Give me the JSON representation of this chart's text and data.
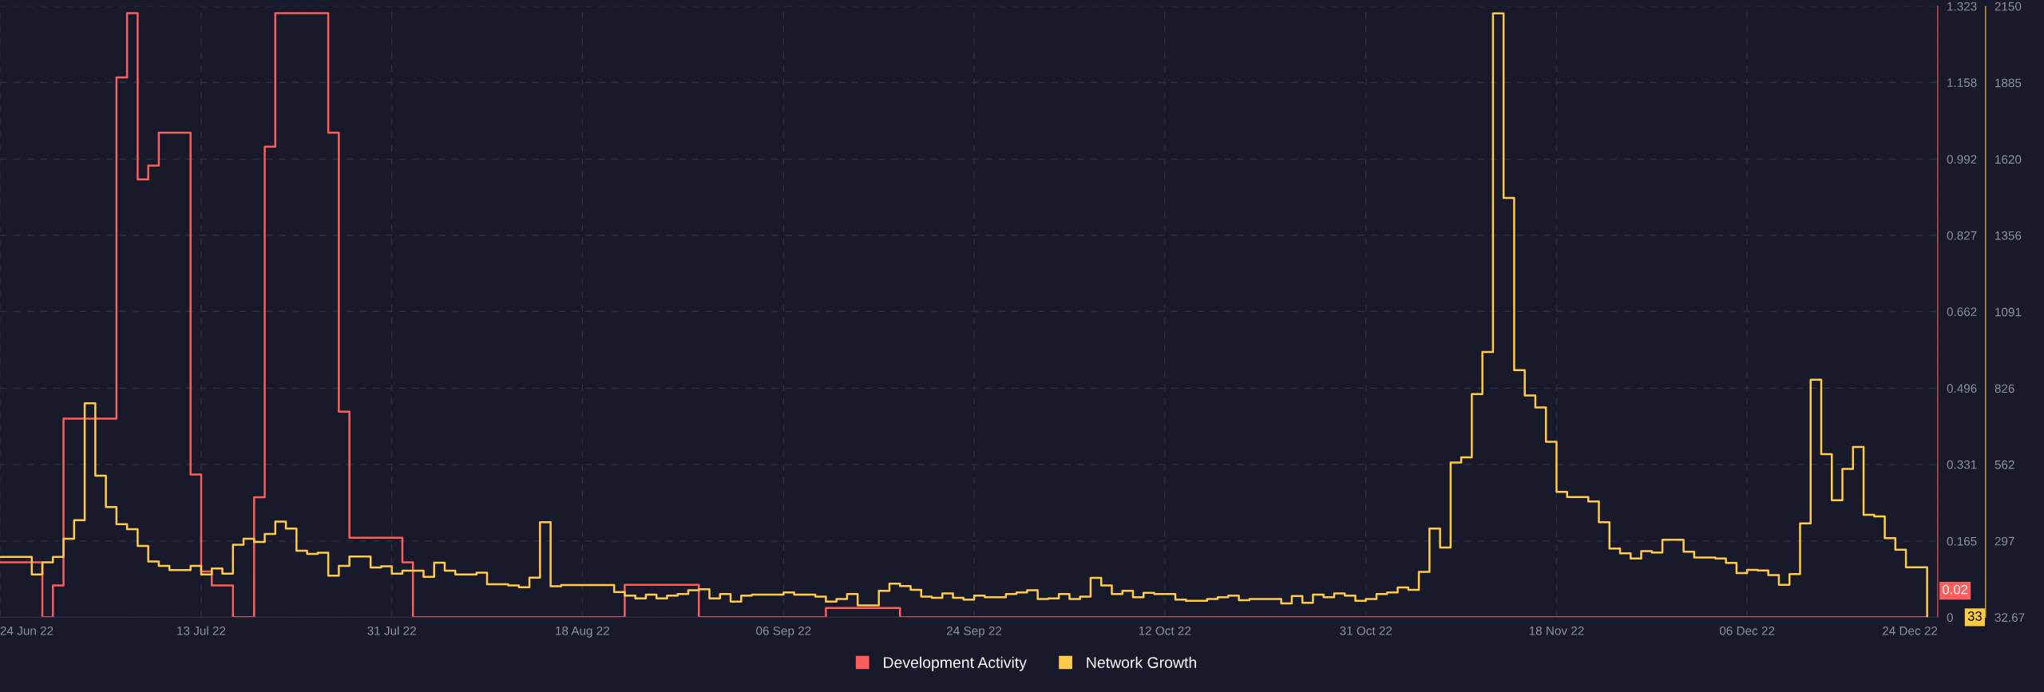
{
  "chart_data": {
    "type": "step",
    "annotations": [
      "0.02",
      "33"
    ],
    "series": [
      {
        "name": "Development Activity",
        "color": "#ff5c5c",
        "axis": "y",
        "x": [
          "2022-06-24",
          "2022-06-28",
          "2022-06-29",
          "2022-06-30",
          "2022-07-05",
          "2022-07-06",
          "2022-07-07",
          "2022-07-08",
          "2022-07-09",
          "2022-07-12",
          "2022-07-13",
          "2022-07-14",
          "2022-07-16",
          "2022-07-18",
          "2022-07-19",
          "2022-07-20",
          "2022-07-25",
          "2022-07-26",
          "2022-07-27",
          "2022-08-01",
          "2022-08-02",
          "2022-08-22",
          "2022-08-29",
          "2022-09-10",
          "2022-09-17",
          "2022-12-23"
        ],
        "values": [
          0.119,
          0,
          0.069,
          0.43,
          1.169,
          1.308,
          0.948,
          0.978,
          1.049,
          0.309,
          0.099,
          0.069,
          0,
          0.26,
          1.019,
          1.308,
          1.049,
          0.445,
          0.172,
          0.119,
          0,
          0.07,
          0,
          0.02,
          0,
          0
        ]
      },
      {
        "name": "Network Growth",
        "color": "#ffcb47",
        "axis": "y2",
        "x": [
          "2022-06-24",
          "2022-06-27",
          "2022-06-28",
          "2022-06-29",
          "2022-06-30",
          "2022-07-01",
          "2022-07-02",
          "2022-07-03",
          "2022-07-04",
          "2022-07-05",
          "2022-07-06",
          "2022-07-07",
          "2022-07-08",
          "2022-07-09",
          "2022-07-10",
          "2022-07-12",
          "2022-07-13",
          "2022-07-14",
          "2022-07-15",
          "2022-07-16",
          "2022-07-17",
          "2022-07-18",
          "2022-07-19",
          "2022-07-20",
          "2022-07-21",
          "2022-07-22",
          "2022-07-23",
          "2022-07-24",
          "2022-07-25",
          "2022-07-26",
          "2022-07-27",
          "2022-07-29",
          "2022-07-30",
          "2022-07-31",
          "2022-08-01",
          "2022-08-03",
          "2022-08-04",
          "2022-08-05",
          "2022-08-06",
          "2022-08-08",
          "2022-08-09",
          "2022-08-11",
          "2022-08-12",
          "2022-08-13",
          "2022-08-14",
          "2022-08-15",
          "2022-08-16",
          "2022-08-21",
          "2022-08-22",
          "2022-08-23",
          "2022-08-24",
          "2022-08-25",
          "2022-08-26",
          "2022-08-27",
          "2022-08-28",
          "2022-08-29",
          "2022-08-30",
          "2022-08-31",
          "2022-09-01",
          "2022-09-02",
          "2022-09-03",
          "2022-09-06",
          "2022-09-07",
          "2022-09-09",
          "2022-09-10",
          "2022-09-11",
          "2022-09-12",
          "2022-09-13",
          "2022-09-15",
          "2022-09-16",
          "2022-09-17",
          "2022-09-18",
          "2022-09-19",
          "2022-09-20",
          "2022-09-21",
          "2022-09-22",
          "2022-09-23",
          "2022-09-24",
          "2022-09-25",
          "2022-09-27",
          "2022-09-28",
          "2022-09-29",
          "2022-09-30",
          "2022-10-01",
          "2022-10-02",
          "2022-10-03",
          "2022-10-04",
          "2022-10-05",
          "2022-10-06",
          "2022-10-07",
          "2022-10-08",
          "2022-10-09",
          "2022-10-10",
          "2022-10-11",
          "2022-10-13",
          "2022-10-14",
          "2022-10-16",
          "2022-10-17",
          "2022-10-18",
          "2022-10-19",
          "2022-10-20",
          "2022-10-23",
          "2022-10-24",
          "2022-10-25",
          "2022-10-26",
          "2022-10-27",
          "2022-10-28",
          "2022-10-29",
          "2022-10-30",
          "2022-10-31",
          "2022-11-01",
          "2022-11-02",
          "2022-11-03",
          "2022-11-04",
          "2022-11-05",
          "2022-11-06",
          "2022-11-07",
          "2022-11-08",
          "2022-11-09",
          "2022-11-10",
          "2022-11-11",
          "2022-11-12",
          "2022-11-13",
          "2022-11-14",
          "2022-11-15",
          "2022-11-16",
          "2022-11-17",
          "2022-11-18",
          "2022-11-19",
          "2022-11-21",
          "2022-11-22",
          "2022-11-23",
          "2022-11-24",
          "2022-11-25",
          "2022-11-26",
          "2022-11-27",
          "2022-11-28",
          "2022-11-30",
          "2022-12-01",
          "2022-12-02",
          "2022-12-03",
          "2022-12-04",
          "2022-12-05",
          "2022-12-06",
          "2022-12-07",
          "2022-12-08",
          "2022-12-09",
          "2022-12-10",
          "2022-12-11",
          "2022-12-12",
          "2022-12-13",
          "2022-12-14",
          "2022-12-15",
          "2022-12-16",
          "2022-12-17",
          "2022-12-18",
          "2022-12-19",
          "2022-12-20",
          "2022-12-21",
          "2022-12-23"
        ],
        "values": [
          242,
          181,
          223,
          242,
          305,
          369,
          774,
          523,
          415,
          355,
          338,
          280,
          226,
          211,
          196,
          211,
          181,
          202,
          184,
          284,
          305,
          294,
          321,
          364,
          340,
          263,
          252,
          256,
          177,
          211,
          243,
          205,
          209,
          184,
          194,
          173,
          222,
          194,
          181,
          187,
          147,
          143,
          137,
          170,
          362,
          140,
          144,
          120,
          108,
          98,
          111,
          98,
          108,
          113,
          126,
          130,
          98,
          113,
          87,
          108,
          111,
          119,
          111,
          104,
          87,
          96,
          113,
          74,
          124,
          149,
          141,
          128,
          104,
          100,
          115,
          100,
          94,
          108,
          102,
          113,
          119,
          126,
          96,
          98,
          113,
          96,
          104,
          169,
          143,
          113,
          124,
          102,
          117,
          113,
          94,
          90,
          96,
          102,
          108,
          92,
          96,
          81,
          106,
          83,
          111,
          102,
          115,
          108,
          90,
          96,
          113,
          119,
          136,
          128,
          190,
          340,
          274,
          569,
          587,
          806,
          952,
          2125,
          1486,
          889,
          801,
          760,
          641,
          467,
          449,
          434,
          362,
          271,
          254,
          236,
          262,
          257,
          301,
          260,
          240,
          240,
          236,
          221,
          186,
          197,
          195,
          179,
          145,
          182,
          358,
          856,
          598,
          438,
          547,
          623,
          388,
          382,
          307,
          267,
          206,
          33
        ]
      }
    ],
    "xlim": [
      "2022-06-24",
      "2022-12-24"
    ],
    "xticks": [
      {
        "value": "2022-06-24",
        "label": "24 Jun 22"
      },
      {
        "value": "2022-07-13",
        "label": "13 Jul 22"
      },
      {
        "value": "2022-07-31",
        "label": "31 Jul 22"
      },
      {
        "value": "2022-08-18",
        "label": "18 Aug 22"
      },
      {
        "value": "2022-09-06",
        "label": "06 Sep 22"
      },
      {
        "value": "2022-09-24",
        "label": "24 Sep 22"
      },
      {
        "value": "2022-10-12",
        "label": "12 Oct 22"
      },
      {
        "value": "2022-10-31",
        "label": "31 Oct 22"
      },
      {
        "value": "2022-11-18",
        "label": "18 Nov 22"
      },
      {
        "value": "2022-12-06",
        "label": "06 Dec 22"
      },
      {
        "value": "2022-12-24",
        "label": "24 Dec 22"
      }
    ],
    "ylim": [
      0,
      1.323
    ],
    "yticks": [
      0,
      0.165,
      0.331,
      0.496,
      0.662,
      0.827,
      0.992,
      1.158,
      1.323
    ],
    "y2lim": [
      32.67,
      2150
    ],
    "y2ticks": [
      {
        "value": 32.67,
        "label": "32.67"
      },
      297,
      562,
      826,
      1091,
      1356,
      1620,
      1885,
      2150
    ],
    "grid": true,
    "legend": "bottom",
    "marker": "none",
    "line_style": "solid"
  }
}
